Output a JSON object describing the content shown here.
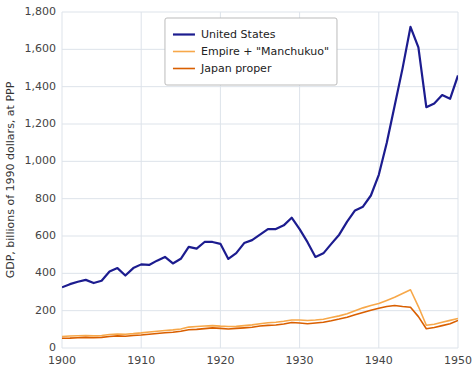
{
  "chart_data": {
    "type": "line",
    "y_label": "GDP, billions of 1990 dollars, at PPP",
    "x": [
      1900,
      1901,
      1902,
      1903,
      1904,
      1905,
      1906,
      1907,
      1908,
      1909,
      1910,
      1911,
      1912,
      1913,
      1914,
      1915,
      1916,
      1917,
      1918,
      1919,
      1920,
      1921,
      1922,
      1923,
      1924,
      1925,
      1926,
      1927,
      1928,
      1929,
      1930,
      1931,
      1932,
      1933,
      1934,
      1935,
      1936,
      1937,
      1938,
      1939,
      1940,
      1941,
      1942,
      1943,
      1944,
      1945,
      1946,
      1947,
      1948,
      1949,
      1950
    ],
    "series": [
      {
        "name": "United States",
        "color": "#1c1c8f",
        "values": [
          325,
          342,
          355,
          365,
          348,
          360,
          410,
          428,
          388,
          428,
          448,
          445,
          468,
          488,
          453,
          478,
          542,
          532,
          568,
          568,
          558,
          477,
          508,
          562,
          578,
          607,
          637,
          637,
          657,
          698,
          637,
          567,
          488,
          507,
          558,
          607,
          677,
          737,
          757,
          817,
          928,
          1098,
          1298,
          1498,
          1720,
          1610,
          1290,
          1310,
          1355,
          1335,
          1460
        ]
      },
      {
        "name": "Empire + \"Manchukuo\"",
        "color": "#f7a84a",
        "values": [
          62,
          64,
          66,
          67,
          65,
          67,
          72,
          75,
          74,
          77,
          81,
          86,
          90,
          94,
          97,
          102,
          112,
          115,
          118,
          120,
          117,
          115,
          116,
          120,
          124,
          130,
          135,
          138,
          143,
          150,
          150,
          147,
          150,
          154,
          163,
          172,
          183,
          200,
          215,
          228,
          238,
          255,
          272,
          292,
          312,
          222,
          122,
          127,
          138,
          148,
          158
        ]
      },
      {
        "name": "Japan proper",
        "color": "#d95f00",
        "values": [
          52,
          53,
          55,
          57,
          55,
          57,
          62,
          65,
          63,
          67,
          70,
          74,
          78,
          82,
          84,
          90,
          98,
          100,
          104,
          108,
          105,
          102,
          105,
          108,
          111,
          118,
          121,
          123,
          129,
          137,
          134,
          130,
          134,
          138,
          146,
          155,
          165,
          178,
          190,
          202,
          213,
          222,
          228,
          222,
          218,
          168,
          103,
          110,
          120,
          130,
          148
        ]
      }
    ],
    "xlim": [
      1900,
      1950
    ],
    "ylim": [
      0,
      1800
    ],
    "xticks": [
      1900,
      1910,
      1920,
      1930,
      1940,
      1950
    ],
    "yticks": [
      0,
      200,
      400,
      600,
      800,
      {
        "value": 1000,
        "label": "1,000"
      },
      {
        "value": 1200,
        "label": "1,200"
      },
      {
        "value": 1400,
        "label": "1,400"
      },
      {
        "value": 1600,
        "label": "1,600"
      },
      {
        "value": 1800,
        "label": "1,800"
      }
    ],
    "grid": true,
    "legend": "upper left"
  }
}
